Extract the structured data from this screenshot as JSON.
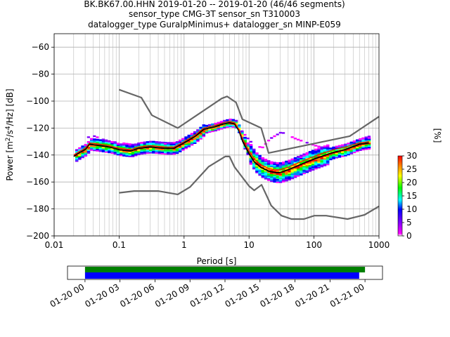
{
  "title_lines": [
    "BK.BK67.00.HHN   2019-01-20 -- 2019-01-20  (46/46 segments)",
    "sensor_type CMG-3T sensor_sn T310003",
    "datalogger_type GuralpMinimus+ datalogger_sn MINP-E059"
  ],
  "chart_data": [
    {
      "type": "heatmap",
      "title": "BK.BK67.00.HHN   2019-01-20 -- 2019-01-20  (46/46 segments)",
      "xlabel": "Period [s]",
      "ylabel": "Power [m²/s⁴/Hz] [dB]",
      "xscale": "log",
      "xlim": [
        0.01,
        1000
      ],
      "ylim": [
        -200,
        -50
      ],
      "xtick_labels": [
        "0.01",
        "0.1",
        "1",
        "10",
        "100",
        "1000"
      ],
      "xtick_values": [
        0.01,
        0.1,
        1,
        10,
        100,
        1000
      ],
      "ytick_values": [
        -200,
        -180,
        -160,
        -140,
        -120,
        -100,
        -80,
        -60
      ],
      "grid": true,
      "colorbar": {
        "label": "[%]",
        "range": [
          0,
          30
        ],
        "ticks": [
          0,
          5,
          10,
          15,
          20,
          25,
          30
        ],
        "colormap": [
          "#ffffff",
          "#ff00ff",
          "#0000ff",
          "#00ffff",
          "#00ff00",
          "#ffff00",
          "#ff7f00",
          "#ff0000"
        ]
      },
      "series": [
        {
          "name": "",
          "role": "model-high-noise",
          "color": "#666666",
          "x": [
            0.1,
            0.22,
            0.32,
            0.8,
            3.8,
            4.6,
            6.3,
            7.9,
            15.4,
            20,
            354.8,
            1000
          ],
          "y": [
            -91.5,
            -97.4,
            -110.5,
            -120,
            -98,
            -96.5,
            -101,
            -113.5,
            -120,
            -138.5,
            -126,
            -111.5
          ]
        },
        {
          "name": "",
          "role": "model-low-noise",
          "color": "#666666",
          "x": [
            0.1,
            0.17,
            0.4,
            0.8,
            1.24,
            2.4,
            4.3,
            5,
            6,
            10,
            12,
            15.6,
            21.9,
            31.6,
            45,
            70,
            101,
            154,
            328,
            600,
            1000
          ],
          "y": [
            -168,
            -166.7,
            -166.7,
            -169.2,
            -163.7,
            -148.6,
            -141.1,
            -141.1,
            -149,
            -163,
            -166.2,
            -162.1,
            -177.5,
            -185,
            -187.5,
            -187.5,
            -185,
            -185,
            -187.5,
            -184.4,
            -178
          ]
        },
        {
          "name": "",
          "role": "mode",
          "color": "#000000",
          "x": [
            0.02,
            0.025,
            0.03,
            0.035,
            0.05,
            0.07,
            0.1,
            0.15,
            0.2,
            0.3,
            0.5,
            0.7,
            1,
            1.5,
            2,
            3,
            4,
            5,
            6,
            7,
            8,
            10,
            12,
            15,
            20,
            25,
            30,
            40,
            50,
            70,
            100,
            150,
            200,
            300,
            500,
            700
          ],
          "y": [
            -141,
            -138,
            -136,
            -132,
            -133,
            -134,
            -136,
            -137,
            -135,
            -134,
            -135,
            -135,
            -131,
            -126,
            -121,
            -119,
            -117,
            -116,
            -117,
            -122,
            -130,
            -139,
            -145,
            -149,
            -152,
            -153,
            -153,
            -151,
            -149,
            -146,
            -143,
            -140,
            -138,
            -136,
            -132,
            -131
          ]
        },
        {
          "name": "",
          "role": "mean",
          "color": "#ff0000",
          "x": [
            0.02,
            0.025,
            0.03,
            0.035,
            0.05,
            0.07,
            0.1,
            0.15,
            0.2,
            0.3,
            0.5,
            0.7,
            1,
            1.5,
            2,
            3,
            4,
            5,
            6,
            7,
            8,
            10,
            12,
            15,
            20,
            25,
            30,
            40,
            50,
            70,
            100,
            150,
            200,
            300,
            500,
            700
          ],
          "y": [
            -140,
            -137,
            -135,
            -131,
            -132,
            -133,
            -135,
            -136,
            -134,
            -133,
            -134,
            -134,
            -130,
            -125,
            -120,
            -118,
            -116,
            -115,
            -116,
            -121,
            -128,
            -137,
            -143,
            -147,
            -150,
            -151,
            -151,
            -149,
            -147,
            -144,
            -141,
            -138,
            -136,
            -134,
            -131,
            -130
          ]
        },
        {
          "name": "",
          "role": "outlier-trace",
          "color": "#cc00cc",
          "x": [
            0.03,
            0.04,
            0.05,
            0.07,
            0.1,
            0.2,
            0.4,
            1,
            2,
            4,
            6,
            10,
            15,
            20,
            30,
            50,
            100,
            200,
            300,
            500,
            700
          ],
          "y": [
            -127,
            -126,
            -128,
            -130,
            -131,
            -133,
            -132,
            -130,
            -123,
            -118,
            -117,
            -130,
            -135,
            -128,
            -123,
            -128,
            -133,
            -137,
            -138,
            -128,
            -126
          ]
        }
      ]
    },
    {
      "type": "bar",
      "title": "",
      "xlabel": "",
      "xtick_labels": [
        "01-20 00",
        "01-20 03",
        "01-20 06",
        "01-20 09",
        "01-20 12",
        "01-20 15",
        "01-20 18",
        "01-20 21",
        "01-21 00"
      ],
      "xlim_hours": [
        -1.5,
        25.5
      ],
      "series": [
        {
          "name": "",
          "color": "#008000",
          "start_hour": 0,
          "end_hour": 24
        },
        {
          "name": "",
          "color": "#0000ff",
          "start_hour": 0,
          "end_hour": 23.5
        }
      ]
    }
  ]
}
